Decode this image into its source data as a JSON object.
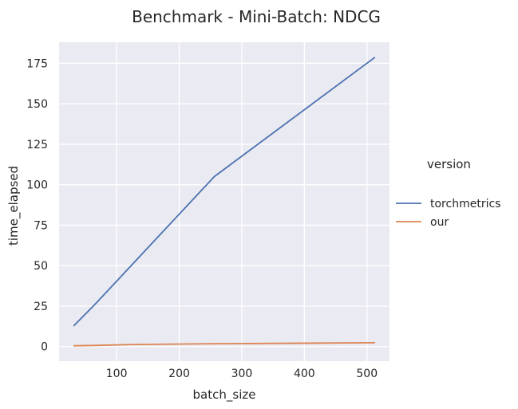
{
  "chart_data": {
    "type": "line",
    "title": "Benchmark - Mini-Batch: NDCG",
    "xlabel": "batch_size",
    "ylabel": "time_elapsed",
    "xlim": [
      8,
      536
    ],
    "ylim": [
      -9,
      188
    ],
    "x_ticks": [
      100,
      200,
      300,
      400,
      500
    ],
    "y_ticks": [
      0,
      25,
      50,
      75,
      100,
      125,
      150,
      175
    ],
    "grid": true,
    "legend": {
      "title": "version",
      "placement": "right-outside"
    },
    "series": [
      {
        "name": "torchmetrics",
        "color": "#4c72b0",
        "points": [
          [
            32,
            13
          ],
          [
            64,
            25.5
          ],
          [
            128,
            52
          ],
          [
            256,
            105
          ],
          [
            512,
            178.5
          ]
        ]
      },
      {
        "name": "our",
        "color": "#dd8452",
        "points": [
          [
            32,
            0.5
          ],
          [
            64,
            0.7
          ],
          [
            128,
            1.3
          ],
          [
            256,
            1.8
          ],
          [
            512,
            2.4
          ]
        ]
      }
    ]
  }
}
